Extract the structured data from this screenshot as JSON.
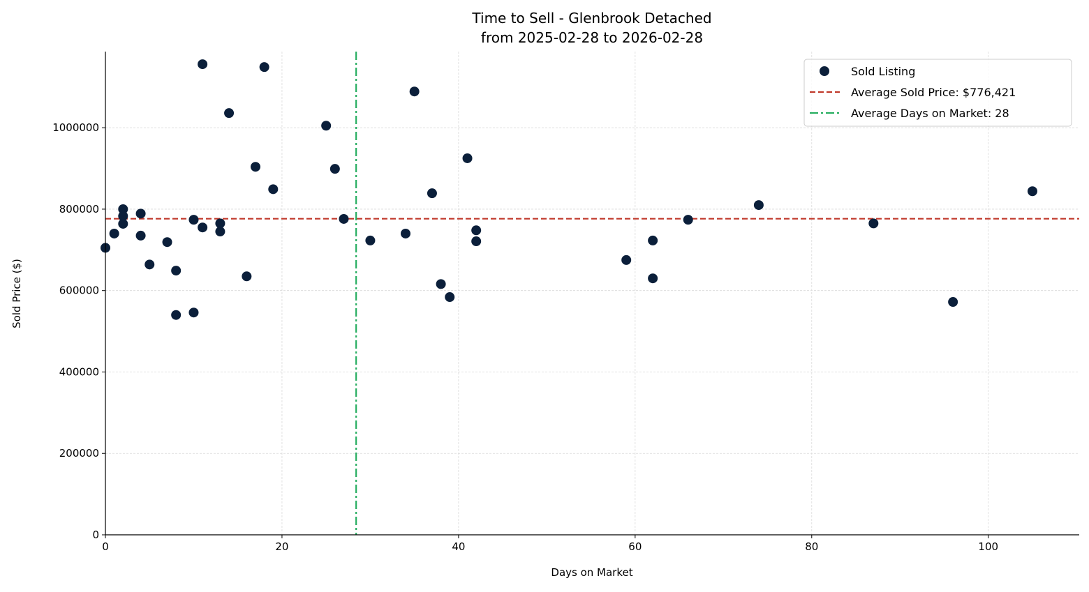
{
  "chart_data": {
    "type": "scatter",
    "title": "Time to Sell - Glenbrook Detached",
    "subtitle": "from 2025-02-28 to 2026-02-28",
    "xlabel": "Days on Market",
    "ylabel": "Sold Price ($)",
    "xlim": [
      0,
      110.3
    ],
    "ylim": [
      0,
      1187000
    ],
    "xticks": [
      0,
      20,
      40,
      60,
      80,
      100
    ],
    "yticks": [
      0,
      200000,
      400000,
      600000,
      800000,
      1000000
    ],
    "xtick_labels": [
      "0",
      "20",
      "40",
      "60",
      "80",
      "100"
    ],
    "ytick_labels": [
      "0",
      "200000",
      "400000",
      "600000",
      "800000",
      "1000000"
    ],
    "grid": true,
    "legend_placement": "top-right",
    "colors": {
      "points": "#0b1f3a",
      "avg_price": "#c0392b",
      "avg_days": "#27ae60",
      "grid": "#d9d9d9"
    },
    "series": [
      {
        "name": "Sold Listing",
        "points": [
          [
            0,
            705000
          ],
          [
            1,
            740000
          ],
          [
            2,
            800000
          ],
          [
            2,
            783000
          ],
          [
            2,
            764000
          ],
          [
            4,
            789000
          ],
          [
            4,
            735000
          ],
          [
            5,
            664000
          ],
          [
            7,
            719000
          ],
          [
            8,
            649000
          ],
          [
            8,
            540000
          ],
          [
            10,
            774000
          ],
          [
            10,
            546000
          ],
          [
            11,
            1156000
          ],
          [
            11,
            755000
          ],
          [
            13,
            765000
          ],
          [
            13,
            745000
          ],
          [
            14,
            1036000
          ],
          [
            16,
            635000
          ],
          [
            17,
            904000
          ],
          [
            18,
            1149000
          ],
          [
            19,
            849000
          ],
          [
            25,
            1005000
          ],
          [
            26,
            899000
          ],
          [
            27,
            776000
          ],
          [
            30,
            723000
          ],
          [
            34,
            740000
          ],
          [
            35,
            1089000
          ],
          [
            37,
            839000
          ],
          [
            38,
            616000
          ],
          [
            39,
            584000
          ],
          [
            41,
            925000
          ],
          [
            42,
            748000
          ],
          [
            42,
            721000
          ],
          [
            59,
            675000
          ],
          [
            62,
            723000
          ],
          [
            62,
            630000
          ],
          [
            66,
            774000
          ],
          [
            74,
            810000
          ],
          [
            87,
            765000
          ],
          [
            96,
            572000
          ],
          [
            105,
            844000
          ]
        ]
      }
    ],
    "reference_lines": {
      "avg_price": {
        "label": "Average Sold Price: $776,421",
        "value": 776421
      },
      "avg_days": {
        "label": "Average Days on Market: 28",
        "value": 28.4
      }
    }
  }
}
